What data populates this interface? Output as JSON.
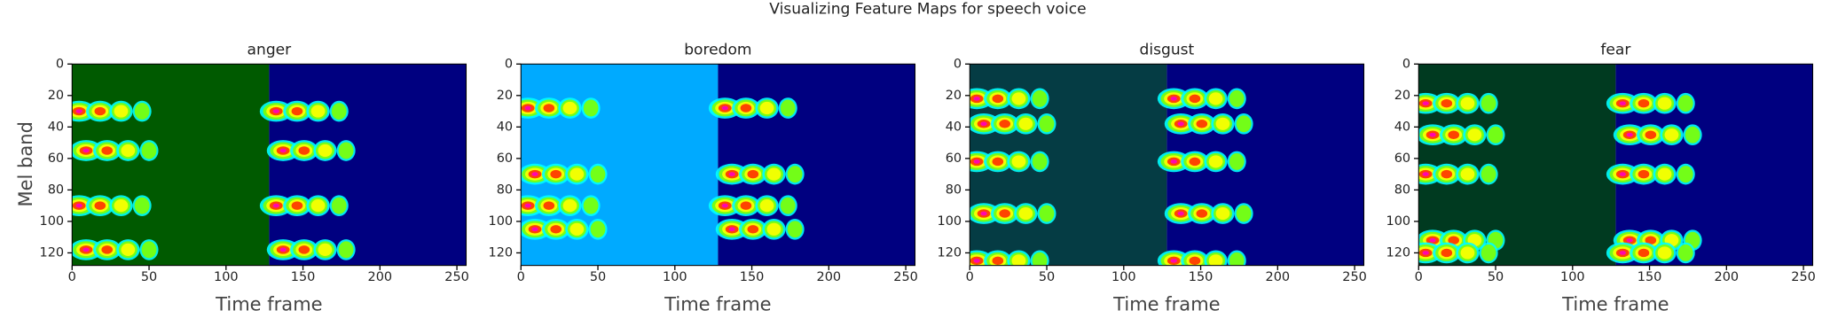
{
  "title": "Visualizing Feature Maps for speech voice",
  "chart_data": [
    {
      "type": "heatmap",
      "title": "anger",
      "xlabel": "Time frame",
      "ylabel": "Mel band",
      "xlim": [
        0,
        256
      ],
      "ylim": [
        0,
        128
      ],
      "xticks": [
        0,
        50,
        100,
        150,
        200,
        250
      ],
      "yticks": [
        0,
        20,
        40,
        60,
        80,
        100,
        120
      ],
      "color": "#005a00"
    },
    {
      "type": "heatmap",
      "title": "boredom",
      "xlabel": "Time frame",
      "xlim": [
        0,
        256
      ],
      "ylim": [
        0,
        128
      ],
      "xticks": [
        0,
        50,
        100,
        150,
        200,
        250
      ],
      "yticks": [
        0,
        20,
        40,
        60,
        80,
        100,
        120
      ],
      "color": "#00aaff"
    },
    {
      "type": "heatmap",
      "title": "disgust",
      "xlabel": "Time frame",
      "xlim": [
        0,
        256
      ],
      "ylim": [
        0,
        128
      ],
      "xticks": [
        0,
        50,
        100,
        150,
        200,
        250
      ],
      "yticks": [
        0,
        20,
        40,
        60,
        80,
        100,
        120
      ],
      "color": "#053c44"
    },
    {
      "type": "heatmap",
      "title": "fear",
      "xlabel": "Time frame",
      "xlim": [
        0,
        256
      ],
      "ylim": [
        0,
        128
      ],
      "xticks": [
        0,
        50,
        100,
        150,
        200,
        250
      ],
      "yticks": [
        0,
        20,
        40,
        60,
        80,
        100,
        120
      ],
      "color": "#003a20"
    }
  ]
}
